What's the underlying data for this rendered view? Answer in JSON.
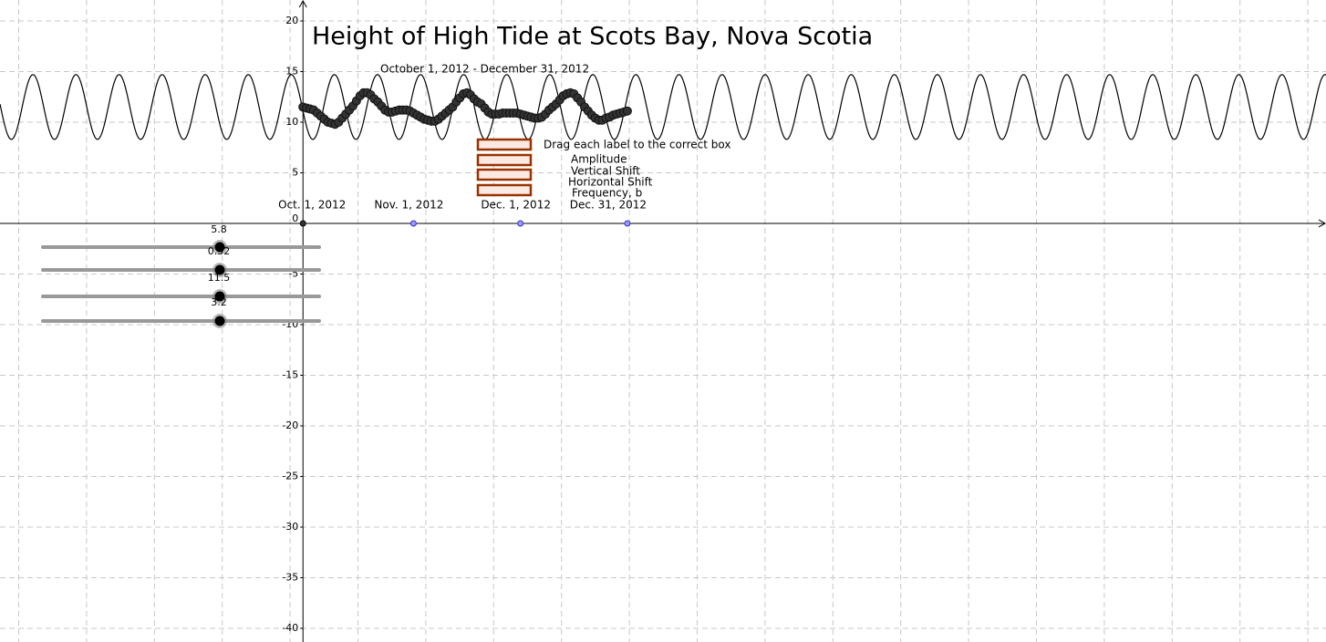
{
  "chart_data": {
    "type": "scatter",
    "title": "Height of High Tide at Scots Bay, Nova Scotia",
    "subtitle": "October 1, 2012 - December 31, 2012",
    "instruction": "Drag each label to the correct box",
    "drag_labels": [
      "Amplitude",
      "Vertical Shift",
      "Horizontal Shift",
      "Frequency, b"
    ],
    "sliders": [
      5.8,
      0.52,
      11.5,
      3.2
    ],
    "xlim": [
      -85,
      287
    ],
    "ylim": [
      -41.35,
      22.07
    ],
    "yticks": [
      -40,
      -35,
      -30,
      -25,
      -20,
      -15,
      -10,
      -5,
      0,
      5,
      10,
      15,
      20
    ],
    "xticks": [
      {
        "value": 0,
        "label": "Oct. 1, 2012"
      },
      {
        "value": 31,
        "label": "Nov. 1, 2012"
      },
      {
        "value": 61,
        "label": "Dec. 1, 2012"
      },
      {
        "value": 91,
        "label": "Dec. 31, 2012"
      }
    ],
    "grid": true,
    "x": [
      0,
      1,
      2,
      3,
      4,
      5,
      6,
      7,
      8,
      9,
      10,
      11,
      12,
      13,
      14,
      15,
      16,
      17,
      18,
      19,
      20,
      21,
      22,
      23,
      24,
      25,
      26,
      27,
      28,
      29,
      30,
      31,
      32,
      33,
      34,
      35,
      36,
      37,
      38,
      39,
      40,
      41,
      42,
      43,
      44,
      45,
      46,
      47,
      48,
      49,
      50,
      51,
      52,
      53,
      54,
      55,
      56,
      57,
      58,
      59,
      60,
      61,
      62,
      63,
      64,
      65,
      66,
      67,
      68,
      69,
      70,
      71,
      72,
      73,
      74,
      75,
      76,
      77,
      78,
      79,
      80,
      81,
      82,
      83,
      84,
      85,
      86,
      87,
      88,
      89,
      90,
      91
    ],
    "values": [
      11.5,
      11.4,
      11.3,
      11.2,
      10.9,
      10.6,
      10.3,
      10.0,
      9.9,
      9.8,
      10.0,
      10.4,
      10.8,
      11.2,
      11.6,
      12.1,
      12.6,
      12.9,
      12.9,
      12.7,
      12.3,
      12.0,
      11.6,
      11.2,
      11.0,
      11.0,
      11.1,
      11.2,
      11.2,
      11.2,
      11.1,
      10.9,
      10.7,
      10.5,
      10.3,
      10.2,
      10.1,
      10.1,
      10.3,
      10.6,
      10.9,
      11.2,
      11.5,
      12.0,
      12.4,
      12.8,
      12.9,
      12.7,
      12.3,
      12.0,
      11.8,
      11.4,
      11.0,
      10.8,
      10.8,
      10.8,
      10.9,
      10.9,
      10.9,
      10.9,
      10.9,
      10.8,
      10.7,
      10.6,
      10.5,
      10.4,
      10.4,
      10.5,
      10.8,
      11.2,
      11.5,
      11.8,
      12.2,
      12.6,
      12.8,
      12.9,
      12.8,
      12.4,
      12.0,
      11.5,
      11.1,
      10.7,
      10.4,
      10.2,
      10.2,
      10.4,
      10.5,
      10.7,
      10.8,
      10.9,
      11.0,
      11.1
    ]
  }
}
